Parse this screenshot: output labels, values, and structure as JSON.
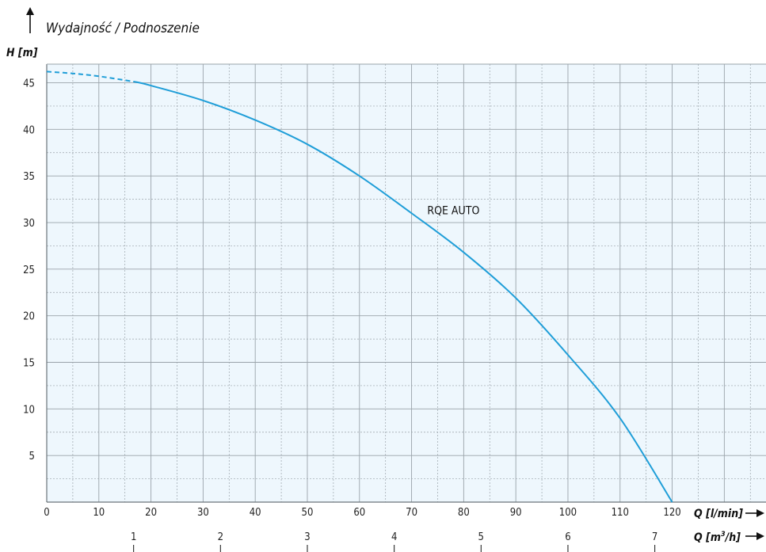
{
  "chart_data": {
    "type": "line",
    "title": "Wydajność / Podnoszenie",
    "ylabel": "H [m]",
    "xlabel": "Q [l/min]",
    "xlabel_secondary_prefix": "Q [m",
    "xlabel_secondary_sup": "3",
    "xlabel_secondary_suffix": "/h]",
    "xlim": [
      0,
      138
    ],
    "ylim": [
      0,
      47
    ],
    "x_ticks": [
      "0",
      "10",
      "20",
      "30",
      "40",
      "50",
      "60",
      "70",
      "80",
      "90",
      "100",
      "110",
      "120"
    ],
    "y_ticks": [
      "5",
      "10",
      "15",
      "20",
      "25",
      "30",
      "35",
      "40",
      "45"
    ],
    "x2_ticks": [
      {
        "label": "1",
        "value": 16.67
      },
      {
        "label": "2",
        "value": 33.33
      },
      {
        "label": "3",
        "value": 50
      },
      {
        "label": "4",
        "value": 66.67
      },
      {
        "label": "5",
        "value": 83.33
      },
      {
        "label": "6",
        "value": 100
      },
      {
        "label": "7",
        "value": 116.67
      }
    ],
    "grid": true,
    "series": [
      {
        "name": "RQE AUTO",
        "color": "#1f9ed8",
        "dashed_until_x": 17,
        "x": [
          0,
          5,
          10,
          17,
          20,
          30,
          40,
          50,
          60,
          70,
          80,
          90,
          100,
          110,
          120
        ],
        "y": [
          46.2,
          46.0,
          45.7,
          45.1,
          44.7,
          43.1,
          41.0,
          38.4,
          35.0,
          31.0,
          26.8,
          21.9,
          15.8,
          9.0,
          0
        ]
      }
    ],
    "annotations": [
      {
        "text": "RQE AUTO",
        "x": 73,
        "y": 30.9
      }
    ]
  },
  "colors": {
    "plot_bg": "#eef7fd",
    "grid_major": "#9aa3aa",
    "grid_minor": "#9aa3aa",
    "curve": "#1f9ed8"
  }
}
